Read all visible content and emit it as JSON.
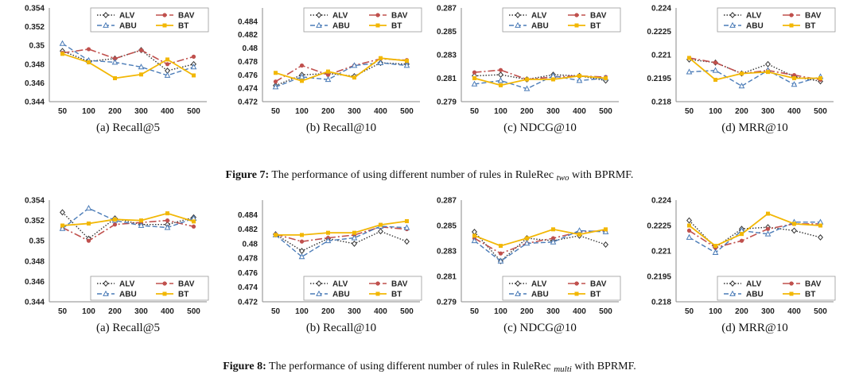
{
  "style": {
    "series_colors": {
      "ALV": "#333333",
      "BAV": "#c0504d",
      "ABU": "#4a7bb7",
      "BT": "#f2b705"
    },
    "series_styles": {
      "ALV": "dotted, open diamond markers",
      "BAV": "long dash-dot, filled circle markers",
      "ABU": "dashed, triangle markers",
      "BT": "solid, filled square markers"
    },
    "legend_placement": "top-right (Figure 7), bottom-right (Figure 8)",
    "grid": false
  },
  "figures": [
    {
      "caption_label": "Figure 7:",
      "caption_before": "The performance of using different number of rules in RuleRec",
      "caption_sub": "two",
      "caption_after": " with BPRMF."
    },
    {
      "caption_label": "Figure 8:",
      "caption_before": "The performance of using different number of rules in RuleRec",
      "caption_sub": "multi",
      "caption_after": " with BPRMF."
    }
  ],
  "chart_data": [
    {
      "figure": 0,
      "type": "line",
      "subtitle": "(a) Recall@5",
      "categories": [
        "50",
        "100",
        "200",
        "300",
        "400",
        "500"
      ],
      "ylim": [
        0.344,
        0.354
      ],
      "yticks": [
        "0.354",
        "0.352",
        "0.35",
        "0.348",
        "0.346",
        "0.344"
      ],
      "legend_placement": "top-right",
      "series": [
        {
          "name": "ALV",
          "values": [
            0.3494,
            0.3483,
            0.3486,
            0.3495,
            0.3473,
            0.348
          ]
        },
        {
          "name": "BAV",
          "values": [
            0.3492,
            0.3496,
            0.3486,
            0.3495,
            0.348,
            0.3488
          ]
        },
        {
          "name": "ABU",
          "values": [
            0.3502,
            0.3484,
            0.3482,
            0.3477,
            0.3468,
            0.3477
          ]
        },
        {
          "name": "BT",
          "values": [
            0.3491,
            0.3482,
            0.3465,
            0.3469,
            0.3485,
            0.3468
          ]
        }
      ]
    },
    {
      "figure": 0,
      "type": "line",
      "subtitle": "(b) Recall@10",
      "categories": [
        "50",
        "100",
        "200",
        "300",
        "400",
        "500"
      ],
      "ylim": [
        0.472,
        0.486
      ],
      "yticks": [
        "0.484",
        "0.482",
        "0.48",
        "0.478",
        "0.476",
        "0.474",
        "0.472"
      ],
      "legend_placement": "top-right",
      "series": [
        {
          "name": "ALV",
          "values": [
            0.4744,
            0.476,
            0.4762,
            0.4758,
            0.4778,
            0.4776
          ]
        },
        {
          "name": "BAV",
          "values": [
            0.475,
            0.4774,
            0.476,
            0.4774,
            0.4784,
            0.4782
          ]
        },
        {
          "name": "ABU",
          "values": [
            0.4742,
            0.4757,
            0.4753,
            0.4774,
            0.4778,
            0.4774
          ]
        },
        {
          "name": "BT",
          "values": [
            0.4763,
            0.4751,
            0.4765,
            0.4756,
            0.4785,
            0.4781
          ]
        }
      ]
    },
    {
      "figure": 0,
      "type": "line",
      "subtitle": "(c) NDCG@10",
      "categories": [
        "50",
        "100",
        "200",
        "300",
        "400",
        "500"
      ],
      "ylim": [
        0.279,
        0.287
      ],
      "yticks": [
        "0.287",
        "0.285",
        "0.283",
        "0.281",
        "0.279"
      ],
      "legend_placement": "top-right",
      "series": [
        {
          "name": "ALV",
          "values": [
            0.2812,
            0.2813,
            0.2809,
            0.2813,
            0.2812,
            0.2808
          ]
        },
        {
          "name": "BAV",
          "values": [
            0.2815,
            0.2817,
            0.2809,
            0.2811,
            0.2812,
            0.2811
          ]
        },
        {
          "name": "ABU",
          "values": [
            0.2805,
            0.2808,
            0.2801,
            0.2812,
            0.2808,
            0.281
          ]
        },
        {
          "name": "BT",
          "values": [
            0.281,
            0.2804,
            0.2809,
            0.2809,
            0.2812,
            0.281
          ]
        }
      ]
    },
    {
      "figure": 0,
      "type": "line",
      "subtitle": "(d) MRR@10",
      "categories": [
        "50",
        "100",
        "200",
        "300",
        "400",
        "500"
      ],
      "ylim": [
        0.218,
        0.224
      ],
      "yticks": [
        "0.224",
        "0.2225",
        "0.221",
        "0.2195",
        "0.218"
      ],
      "legend_placement": "top-right",
      "series": [
        {
          "name": "ALV",
          "values": [
            0.2207,
            0.2205,
            0.2198,
            0.2204,
            0.2196,
            0.2193
          ]
        },
        {
          "name": "BAV",
          "values": [
            0.2208,
            0.2205,
            0.2198,
            0.22,
            0.2197,
            0.2194
          ]
        },
        {
          "name": "ABU",
          "values": [
            0.2199,
            0.22,
            0.219,
            0.22,
            0.2191,
            0.2196
          ]
        },
        {
          "name": "BT",
          "values": [
            0.2208,
            0.2194,
            0.2198,
            0.2199,
            0.2195,
            0.2195
          ]
        }
      ]
    },
    {
      "figure": 1,
      "type": "line",
      "subtitle": "(a) Recall@5",
      "categories": [
        "50",
        "100",
        "200",
        "300",
        "400",
        "500"
      ],
      "ylim": [
        0.344,
        0.354
      ],
      "yticks": [
        "0.354",
        "0.352",
        "0.35",
        "0.348",
        "0.346",
        "0.344"
      ],
      "legend_placement": "bottom-right",
      "series": [
        {
          "name": "ALV",
          "values": [
            0.3528,
            0.3502,
            0.3522,
            0.3516,
            0.3516,
            0.3523
          ]
        },
        {
          "name": "BAV",
          "values": [
            0.3513,
            0.35,
            0.3516,
            0.3518,
            0.352,
            0.3514
          ]
        },
        {
          "name": "ABU",
          "values": [
            0.3512,
            0.3532,
            0.352,
            0.3515,
            0.3513,
            0.3522
          ]
        },
        {
          "name": "BT",
          "values": [
            0.3515,
            0.3517,
            0.3521,
            0.352,
            0.3527,
            0.3519
          ]
        }
      ]
    },
    {
      "figure": 1,
      "type": "line",
      "subtitle": "(b) Recall@10",
      "categories": [
        "50",
        "100",
        "200",
        "300",
        "400",
        "500"
      ],
      "ylim": [
        0.472,
        0.486
      ],
      "yticks": [
        "0.484",
        "0.482",
        "0.48",
        "0.478",
        "0.476",
        "0.474",
        "0.472"
      ],
      "legend_placement": "bottom-right",
      "series": [
        {
          "name": "ALV",
          "values": [
            0.4813,
            0.479,
            0.4807,
            0.48,
            0.4817,
            0.4803
          ]
        },
        {
          "name": "BAV",
          "values": [
            0.4813,
            0.4803,
            0.4808,
            0.4812,
            0.4823,
            0.482
          ]
        },
        {
          "name": "ABU",
          "values": [
            0.4812,
            0.4782,
            0.4804,
            0.4808,
            0.4824,
            0.4822
          ]
        },
        {
          "name": "BT",
          "values": [
            0.4812,
            0.4812,
            0.4815,
            0.4815,
            0.4826,
            0.4831
          ]
        }
      ]
    },
    {
      "figure": 1,
      "type": "line",
      "subtitle": "(c) NDCG@10",
      "categories": [
        "50",
        "100",
        "200",
        "300",
        "400",
        "500"
      ],
      "ylim": [
        0.279,
        0.287
      ],
      "yticks": [
        "0.287",
        "0.285",
        "0.283",
        "0.281",
        "0.279"
      ],
      "legend_placement": "bottom-right",
      "series": [
        {
          "name": "ALV",
          "values": [
            0.2845,
            0.2822,
            0.284,
            0.2838,
            0.2842,
            0.2835
          ]
        },
        {
          "name": "BAV",
          "values": [
            0.284,
            0.2828,
            0.2836,
            0.284,
            0.2845,
            0.2846
          ]
        },
        {
          "name": "ABU",
          "values": [
            0.2838,
            0.2822,
            0.2836,
            0.2837,
            0.2846,
            0.2845
          ]
        },
        {
          "name": "BT",
          "values": [
            0.2842,
            0.2834,
            0.284,
            0.2847,
            0.2843,
            0.2847
          ]
        }
      ]
    },
    {
      "figure": 1,
      "type": "line",
      "subtitle": "(d) MRR@10",
      "categories": [
        "50",
        "100",
        "200",
        "300",
        "400",
        "500"
      ],
      "ylim": [
        0.218,
        0.224
      ],
      "yticks": [
        "0.224",
        "0.2225",
        "0.221",
        "0.2195",
        "0.218"
      ],
      "legend_placement": "bottom-right",
      "series": [
        {
          "name": "ALV",
          "values": [
            0.2228,
            0.2212,
            0.2223,
            0.2224,
            0.2222,
            0.2218
          ]
        },
        {
          "name": "BAV",
          "values": [
            0.2222,
            0.2212,
            0.2216,
            0.2223,
            0.2226,
            0.2226
          ]
        },
        {
          "name": "ABU",
          "values": [
            0.2218,
            0.2209,
            0.2222,
            0.222,
            0.2227,
            0.2227
          ]
        },
        {
          "name": "BT",
          "values": [
            0.2225,
            0.2213,
            0.222,
            0.2232,
            0.2226,
            0.2225
          ]
        }
      ]
    }
  ]
}
